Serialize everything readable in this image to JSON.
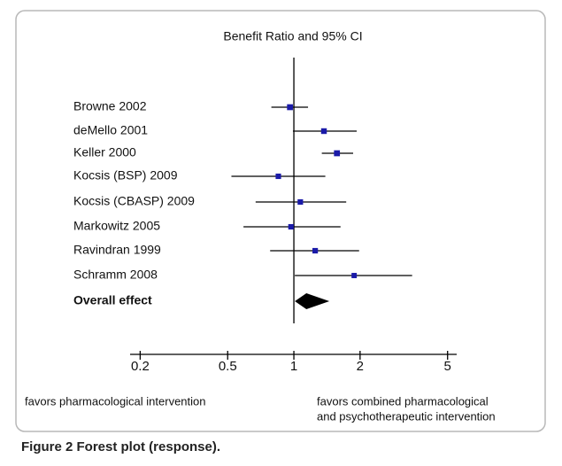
{
  "chart_data": {
    "type": "forest",
    "title": "Benefit Ratio and 95% CI",
    "categories": [
      "Browne 2002",
      "deMello 2001",
      "Keller 2000",
      "Kocsis (BSP) 2009",
      "Kocsis (CBASP) 2009",
      "Markowitz 2005",
      "Ravindran 1999",
      "Schramm 2008"
    ],
    "estimates": [
      0.96,
      1.37,
      1.57,
      0.85,
      1.07,
      0.97,
      1.25,
      1.88
    ],
    "lower": [
      0.79,
      0.99,
      1.34,
      0.52,
      0.67,
      0.59,
      0.78,
      1.01
    ],
    "upper": [
      1.16,
      1.93,
      1.86,
      1.39,
      1.73,
      1.63,
      1.98,
      3.45
    ],
    "color": "#1a1aa8",
    "overall": {
      "name": "Overall effect",
      "lower": 1.01,
      "estimate": 1.14,
      "upper": 1.45
    },
    "reference": 1,
    "xscale": "log",
    "xlim": [
      0.18,
      5.5
    ],
    "xticks": [
      0.2,
      0.5,
      1,
      2,
      5
    ],
    "left_note": "favors pharmacological intervention",
    "right_note": [
      "favors combined pharmacological",
      "and psychotherapeutic intervention"
    ]
  },
  "caption": "Figure 2 Forest plot (response)."
}
